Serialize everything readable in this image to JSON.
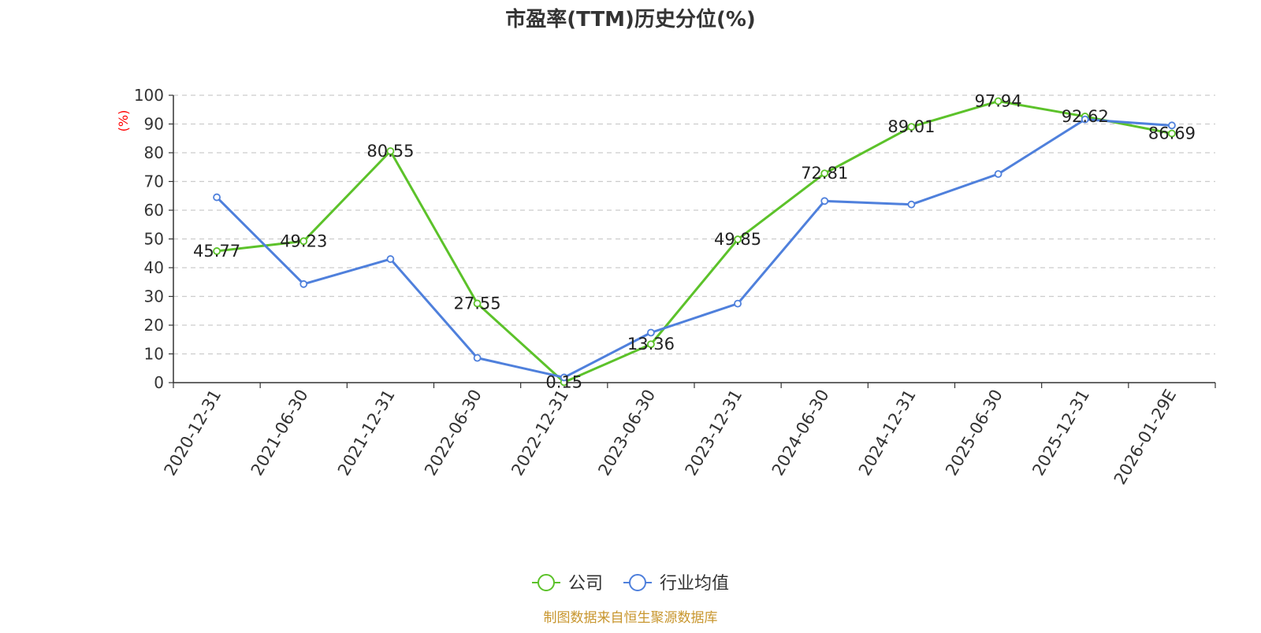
{
  "chart_data": {
    "type": "line",
    "title": "市盈率(TTM)历史分位(%)",
    "ylabel": "(%)",
    "xlabel": "",
    "ylim": [
      0,
      100
    ],
    "yticks": [
      0,
      10,
      20,
      30,
      40,
      50,
      60,
      70,
      80,
      90,
      100
    ],
    "grid": true,
    "legend_position": "bottom-center",
    "categories": [
      "2020-12-31",
      "2021-06-30",
      "2021-12-31",
      "2022-06-30",
      "2022-12-31",
      "2023-06-30",
      "2023-12-31",
      "2024-06-30",
      "2024-12-31",
      "2025-06-30",
      "2025-12-31",
      "2026-01-29E"
    ],
    "series": [
      {
        "name": "公司",
        "color": "#5cc22a",
        "show_labels": true,
        "values": [
          45.77,
          49.23,
          80.55,
          27.55,
          0.15,
          13.36,
          49.85,
          72.81,
          89.01,
          97.94,
          92.62,
          86.69
        ]
      },
      {
        "name": "行业均值",
        "color": "#4f80dc",
        "show_labels": false,
        "values": [
          64.5,
          34.3,
          43.0,
          8.6,
          1.8,
          17.4,
          27.5,
          63.2,
          62.0,
          72.6,
          91.6,
          89.5
        ]
      }
    ],
    "source": "制图数据来自恒生聚源数据库",
    "colors": {
      "title": "#333333",
      "ylabel": "#ff0000",
      "source": "#c8962e",
      "grid": "#cccccc",
      "axis": "#333333"
    }
  }
}
